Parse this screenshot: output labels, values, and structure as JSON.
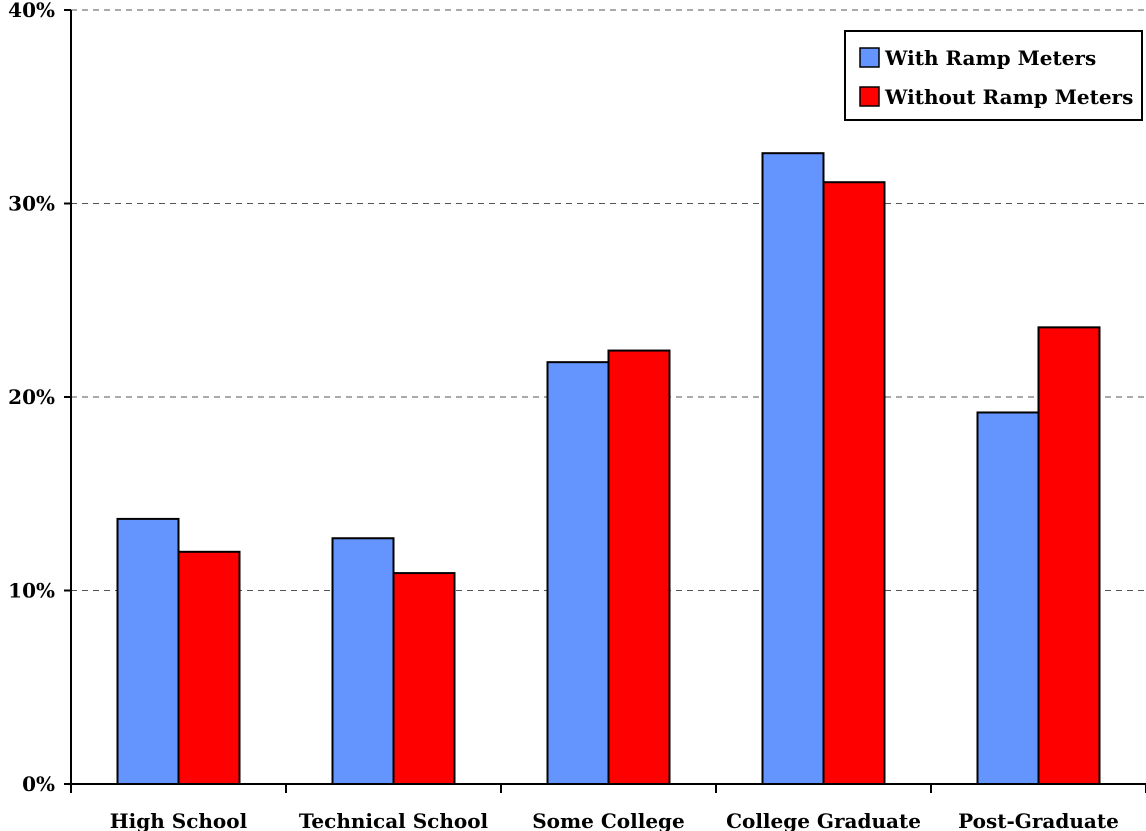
{
  "chart_data": {
    "type": "bar",
    "categories": [
      "High School",
      "Technical School",
      "Some College",
      "College Graduate",
      "Post-Graduate"
    ],
    "series": [
      {
        "name": "With Ramp Meters",
        "color": "#6495FF",
        "values": [
          13.7,
          12.7,
          21.8,
          32.6,
          19.2
        ]
      },
      {
        "name": "Without Ramp Meters",
        "color": "#FF0000",
        "values": [
          12.0,
          10.9,
          22.4,
          31.1,
          23.6
        ]
      }
    ],
    "ylim": [
      0,
      40
    ],
    "y_ticks": [
      "0%",
      "10%",
      "20%",
      "30%",
      "40%"
    ],
    "y_tick_values": [
      0,
      10,
      20,
      30,
      40
    ],
    "grid": true,
    "legend_position": "top-right"
  }
}
